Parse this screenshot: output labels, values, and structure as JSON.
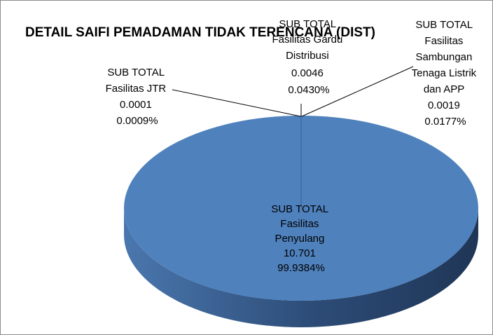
{
  "chart_data": {
    "type": "pie",
    "title": "DETAIL SAIFI PEMADAMAN TIDAK TERENCANA (DIST)",
    "slices": [
      {
        "label_lines": [
          "SUB TOTAL",
          "Fasilitas",
          "Penyulang"
        ],
        "value": 10.701,
        "percent": "99.9384%",
        "value_text": "10.701"
      },
      {
        "label_lines": [
          "SUB TOTAL",
          "Fasilitas Gardu",
          "Distribusi"
        ],
        "value": 0.0046,
        "percent": "0.0430%",
        "value_text": "0.0046"
      },
      {
        "label_lines": [
          "SUB TOTAL",
          "Fasilitas",
          "Sambungan",
          "Tenaga Listrik",
          "dan APP"
        ],
        "value": 0.0019,
        "percent": "0.0177%",
        "value_text": "0.0019"
      },
      {
        "label_lines": [
          "SUB TOTAL",
          "Fasilitas JTR"
        ],
        "value": 0.0001,
        "percent": "0.0009%",
        "value_text": "0.0001"
      }
    ],
    "colors": {
      "pie_top": "#4f81bd",
      "pie_side_light": "#4a77ae",
      "pie_side_dark": "#1f3656",
      "leader": "#000000"
    }
  }
}
